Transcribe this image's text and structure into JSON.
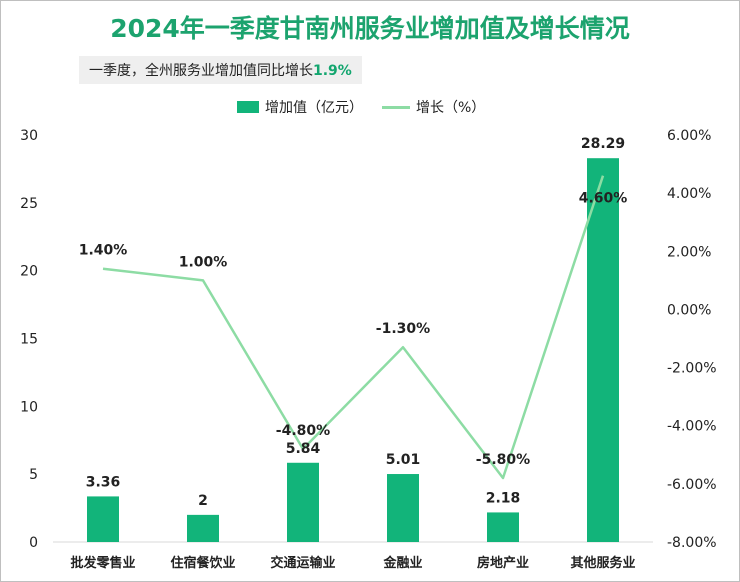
{
  "title": "2024年一季度甘南州服务业增加值及增长情况",
  "subtitle": {
    "text": "一季度，全州服务业增加值同比增长",
    "value": "1.9%"
  },
  "legend": {
    "bar": "增加值（亿元）",
    "line": "增长（%）"
  },
  "colors": {
    "bar": "#12b47a",
    "line": "#8ddca4",
    "title": "#1ca36e"
  },
  "chart_data": {
    "type": "bar",
    "categories": [
      "批发零售业",
      "住宿餐饮业",
      "交通运输业",
      "金融业",
      "房地产业",
      "其他服务业"
    ],
    "series": [
      {
        "name": "增加值（亿元）",
        "type": "bar",
        "axis": "left",
        "values": [
          3.36,
          2,
          5.84,
          5.01,
          2.18,
          28.29
        ],
        "labels": [
          "3.36",
          "2",
          "5.84",
          "5.01",
          "2.18",
          "28.29"
        ]
      },
      {
        "name": "增长（%）",
        "type": "line",
        "axis": "right",
        "values": [
          1.4,
          1.0,
          -4.8,
          -1.3,
          -5.8,
          4.6
        ],
        "labels": [
          "1.40%",
          "1.00%",
          "-4.80%",
          "-1.30%",
          "-5.80%",
          "4.60%"
        ]
      }
    ],
    "y_left": {
      "range": [
        0,
        30
      ],
      "ticks": [
        "0",
        "5",
        "10",
        "15",
        "20",
        "25",
        "30"
      ]
    },
    "y_right": {
      "range": [
        -8,
        6
      ],
      "ticks": [
        "-8.00%",
        "-6.00%",
        "-4.00%",
        "-2.00%",
        "0.00%",
        "2.00%",
        "4.00%",
        "6.00%"
      ]
    },
    "grid": false,
    "legend_position": "top-center"
  }
}
